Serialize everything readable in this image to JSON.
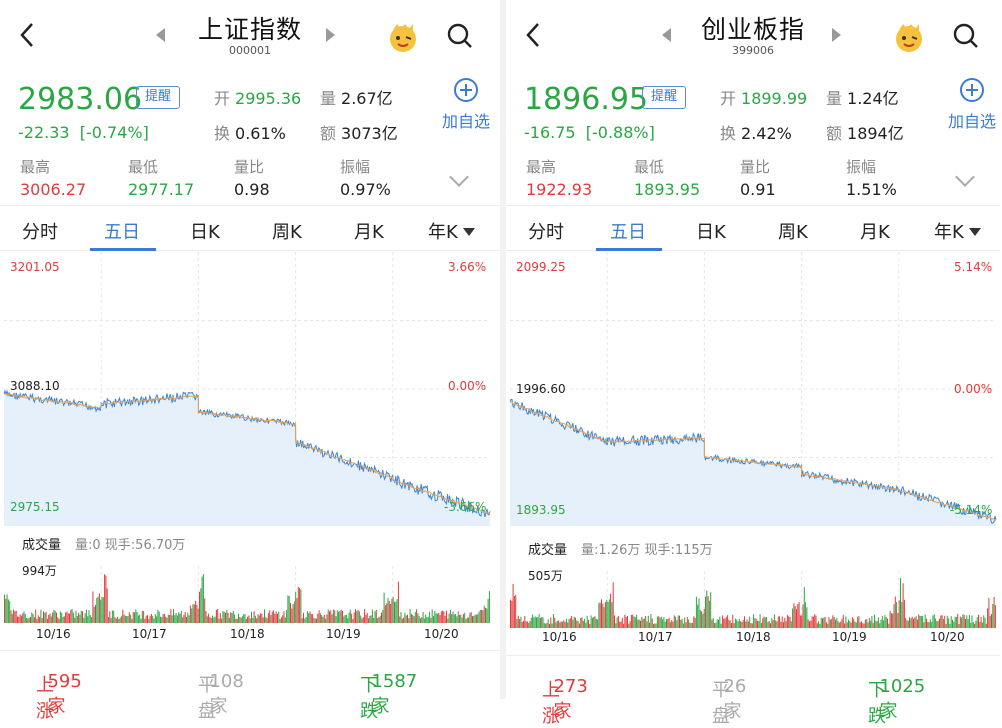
{
  "left": {
    "title": "上证指数",
    "code": "000001",
    "price": "2983.06",
    "change": "-22.33",
    "change_pct": "[-0.74%]",
    "remind": "提醒",
    "open_k": "开",
    "open_v": "2995.36",
    "vol_k": "量",
    "vol_v": "2.67亿",
    "turn_k": "换",
    "turn_v": "0.61%",
    "amt_k": "额",
    "amt_v": "3073亿",
    "add": "加自选",
    "high_k": "最高",
    "high_v": "3006.27",
    "low_k": "最低",
    "low_v": "2977.17",
    "ratio_k": "量比",
    "ratio_v": "0.98",
    "amp_k": "振幅",
    "amp_v": "0.97%",
    "tabs": [
      "分时",
      "五日",
      "日K",
      "周K",
      "月K",
      "年K"
    ],
    "y_top": "3201.05",
    "y_mid": "3088.10",
    "y_bot": "2975.15",
    "p_top": "3.66%",
    "p_mid": "0.00%",
    "p_bot": "-3.66%",
    "vol_title": "成交量",
    "vol_info": "量:0 现手:56.70万",
    "vol_max": "994万",
    "dates": [
      "10/16",
      "10/17",
      "10/18",
      "10/19",
      "10/20"
    ],
    "up": "上涨",
    "up_n": "595家",
    "flat": "平盘",
    "flat_n": "108家",
    "down": "下跌",
    "down_n": "1587家"
  },
  "right": {
    "title": "创业板指",
    "code": "399006",
    "price": "1896.95",
    "change": "-16.75",
    "change_pct": "[-0.88%]",
    "remind": "提醒",
    "open_k": "开",
    "open_v": "1899.99",
    "vol_k": "量",
    "vol_v": "1.24亿",
    "turn_k": "换",
    "turn_v": "2.42%",
    "amt_k": "额",
    "amt_v": "1894亿",
    "add": "加自选",
    "high_k": "最高",
    "high_v": "1922.93",
    "low_k": "最低",
    "low_v": "1893.95",
    "ratio_k": "量比",
    "ratio_v": "0.91",
    "amp_k": "振幅",
    "amp_v": "1.51%",
    "tabs": [
      "分时",
      "五日",
      "日K",
      "周K",
      "月K",
      "年K"
    ],
    "y_top": "2099.25",
    "y_mid": "1996.60",
    "y_bot": "1893.95",
    "p_top": "5.14%",
    "p_mid": "0.00%",
    "p_bot": "-5.14%",
    "vol_title": "成交量",
    "vol_info": "量:1.26万 现手:115万",
    "vol_max": "505万",
    "dates": [
      "10/16",
      "10/17",
      "10/18",
      "10/19",
      "10/20"
    ],
    "up": "上涨",
    "up_n": "273家",
    "flat": "平盘",
    "flat_n": "26家",
    "down": "下跌",
    "down_n": "1025家"
  },
  "colors": {
    "up": "#e23b3b",
    "down": "#2aa743",
    "accent": "#3b7bd4",
    "line": "#3a84d8",
    "avg": "#e8a25a",
    "fill": "#e6f0fb"
  }
}
